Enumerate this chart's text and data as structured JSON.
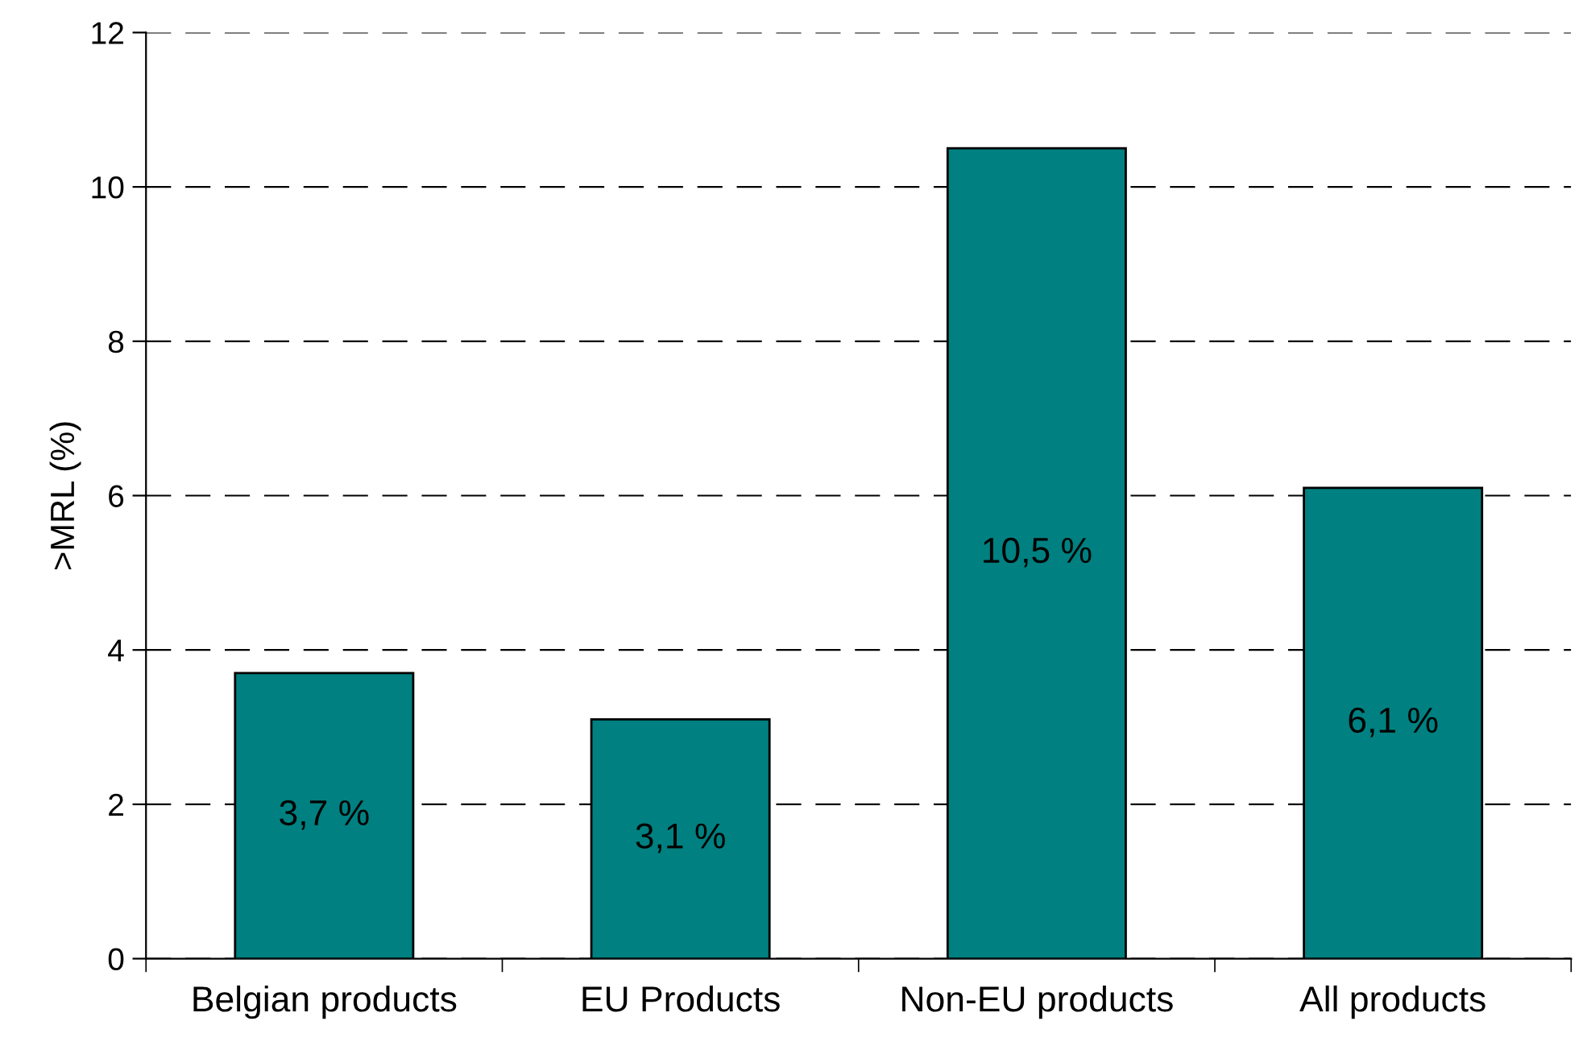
{
  "chart_data": {
    "type": "bar",
    "ylabel": ">MRL (%)",
    "categories": [
      "Belgian products",
      "EU Products",
      "Non-EU products",
      "All products"
    ],
    "values": [
      3.7,
      3.1,
      10.5,
      6.1
    ],
    "value_labels": [
      "3,7 %",
      "3,1 %",
      "10,5 %",
      "6,1 %"
    ],
    "color": "#008080",
    "ylim": [
      0,
      12
    ],
    "yticks": [
      0,
      2,
      4,
      6,
      8,
      10,
      12
    ],
    "grid": "y",
    "legend": false
  }
}
